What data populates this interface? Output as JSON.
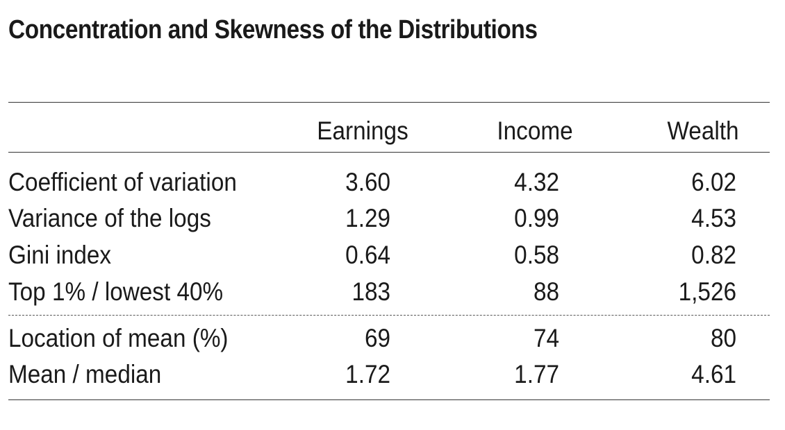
{
  "title": "Concentration and Skewness of the Distributions",
  "columns": [
    "Earnings",
    "Income",
    "Wealth"
  ],
  "rows_group1": [
    {
      "label": "Coefficient of variation",
      "values": [
        "3.60",
        "4.32",
        "6.02"
      ]
    },
    {
      "label": "Variance of the logs",
      "values": [
        "1.29",
        "0.99",
        "4.53"
      ]
    },
    {
      "label": "Gini index",
      "values": [
        "0.64",
        "0.58",
        "0.82"
      ]
    },
    {
      "label": "Top 1% / lowest 40%",
      "values": [
        "183",
        "88",
        "1,526"
      ]
    }
  ],
  "rows_group2": [
    {
      "label": "Location of mean (%)",
      "values": [
        "69",
        "74",
        "80"
      ]
    },
    {
      "label": "Mean / median",
      "values": [
        "1.72",
        "1.77",
        "4.61"
      ]
    }
  ]
}
